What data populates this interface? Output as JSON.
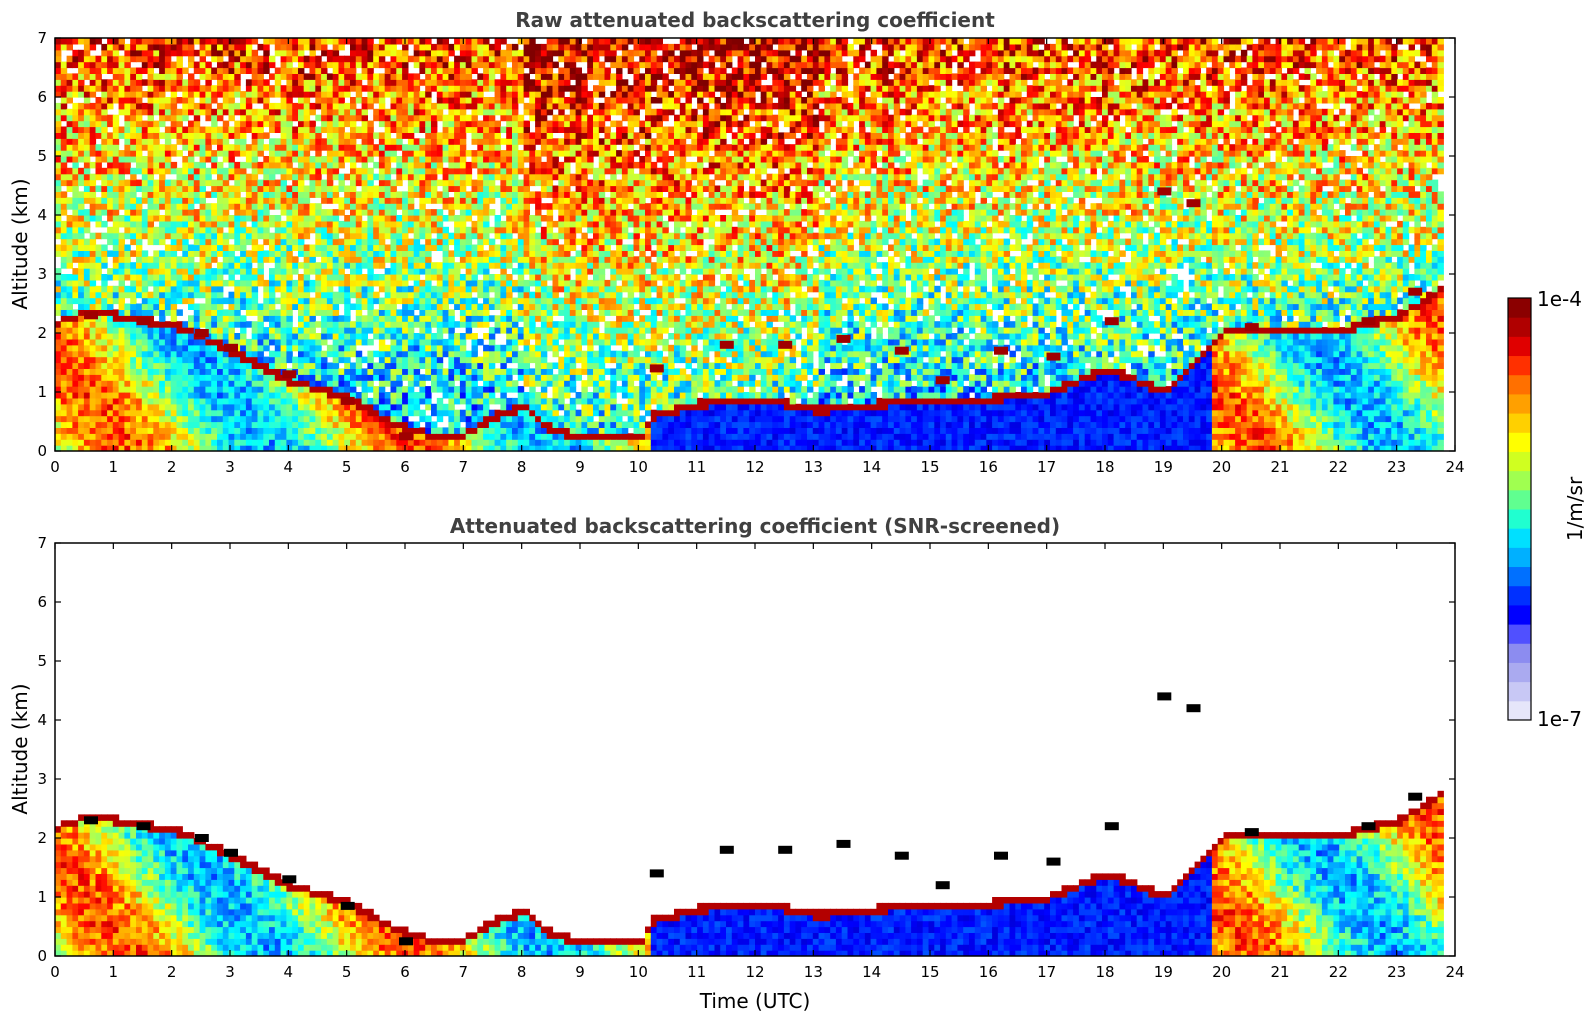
{
  "chart_data": [
    {
      "type": "heatmap",
      "title": "Raw attenuated backscattering coefficient",
      "xlabel": "",
      "ylabel": "Altitude (km)",
      "xlim": [
        0,
        24
      ],
      "ylim": [
        0,
        7
      ],
      "x_ticks": [
        "0",
        "1",
        "2",
        "3",
        "4",
        "5",
        "6",
        "7",
        "8",
        "9",
        "10",
        "11",
        "12",
        "13",
        "14",
        "15",
        "16",
        "17",
        "18",
        "19",
        "20",
        "21",
        "22",
        "23",
        "24"
      ],
      "y_ticks": [
        "0",
        "1",
        "2",
        "3",
        "4",
        "5",
        "6",
        "7"
      ],
      "data_end_time": 23.8,
      "boundary_layer_top_km": [
        [
          0,
          2.2
        ],
        [
          0.6,
          2.4
        ],
        [
          1,
          2.3
        ],
        [
          2,
          2.15
        ],
        [
          3,
          1.7
        ],
        [
          4,
          1.2
        ],
        [
          5,
          0.9
        ],
        [
          5.8,
          0.45
        ],
        [
          6.5,
          0.25
        ],
        [
          7,
          0.3
        ],
        [
          7.5,
          0.6
        ],
        [
          8,
          0.75
        ],
        [
          8.5,
          0.35
        ],
        [
          9,
          0.25
        ],
        [
          10,
          0.25
        ],
        [
          10.2,
          0.6
        ],
        [
          11,
          0.8
        ],
        [
          12,
          0.9
        ],
        [
          13,
          0.7
        ],
        [
          14,
          0.8
        ],
        [
          15,
          0.9
        ],
        [
          16,
          0.9
        ],
        [
          17,
          1.0
        ],
        [
          18,
          1.4
        ],
        [
          19,
          1.0
        ],
        [
          19.8,
          1.8
        ],
        [
          20,
          2.1
        ],
        [
          21,
          2.05
        ],
        [
          22,
          2.05
        ],
        [
          23,
          2.3
        ],
        [
          23.8,
          2.8
        ]
      ],
      "cloud_layers_km": [
        [
          0.6,
          2.3
        ],
        [
          1.5,
          2.2
        ],
        [
          2.5,
          2.0
        ],
        [
          3,
          1.75
        ],
        [
          4,
          1.3
        ],
        [
          5,
          0.85
        ],
        [
          6,
          0.25
        ],
        [
          10.3,
          1.4
        ],
        [
          11.5,
          1.8
        ],
        [
          12.5,
          1.8
        ],
        [
          13.5,
          1.9
        ],
        [
          14.5,
          1.7
        ],
        [
          15.2,
          1.2
        ],
        [
          16.2,
          1.7
        ],
        [
          17.1,
          1.6
        ],
        [
          18.1,
          2.2
        ],
        [
          19.0,
          4.4
        ],
        [
          19.5,
          4.2
        ],
        [
          20.5,
          2.1
        ],
        [
          22.5,
          2.2
        ],
        [
          23.3,
          2.7
        ]
      ],
      "colorscale": {
        "type": "jet",
        "scale": "log"
      }
    },
    {
      "type": "heatmap",
      "title": "Attenuated backscattering coefficient (SNR-screened)",
      "xlabel": "Time (UTC)",
      "ylabel": "Altitude (km)",
      "xlim": [
        0,
        24
      ],
      "ylim": [
        0,
        7
      ],
      "x_ticks": [
        "0",
        "1",
        "2",
        "3",
        "4",
        "5",
        "6",
        "7",
        "8",
        "9",
        "10",
        "11",
        "12",
        "13",
        "14",
        "15",
        "16",
        "17",
        "18",
        "19",
        "20",
        "21",
        "22",
        "23",
        "24"
      ],
      "y_ticks": [
        "0",
        "1",
        "2",
        "3",
        "4",
        "5",
        "6",
        "7"
      ],
      "data_end_time": 23.8,
      "screened": true,
      "colorscale": {
        "type": "jet",
        "scale": "log"
      }
    }
  ],
  "colorbar": {
    "label": "1/m/sr",
    "max_label": "1e-4",
    "min_label": "1e-7",
    "colors": [
      "#e6e6fa",
      "#c8c8f5",
      "#aaaaf0",
      "#8c8cf0",
      "#5050ff",
      "#0000ff",
      "#0030ff",
      "#0070ff",
      "#00b0ff",
      "#00e0ff",
      "#20ffd0",
      "#60ff90",
      "#a0ff50",
      "#d0ff20",
      "#ffff00",
      "#ffd000",
      "#ffa000",
      "#ff7000",
      "#ff3000",
      "#e00000",
      "#b00000",
      "#8b0000"
    ]
  }
}
